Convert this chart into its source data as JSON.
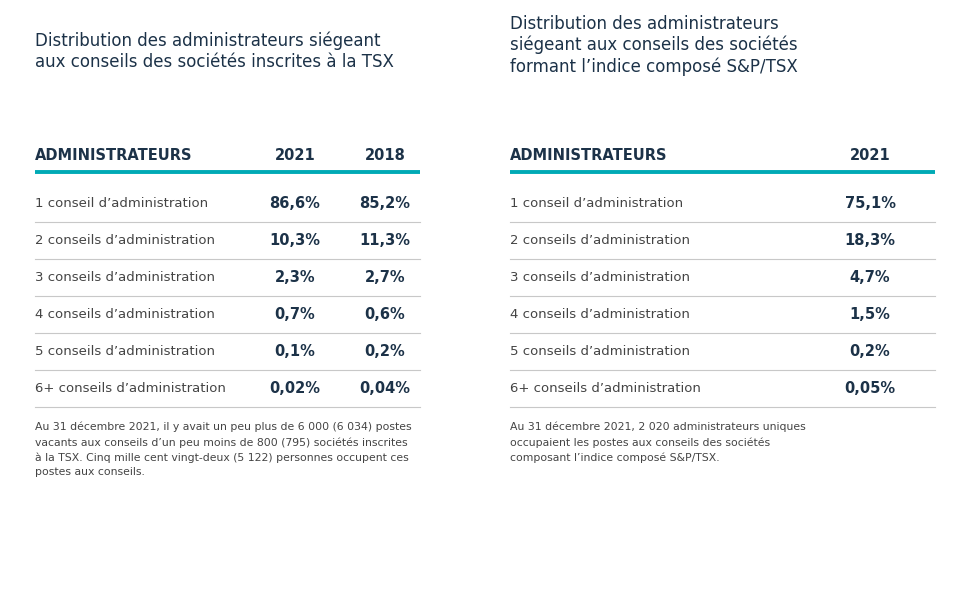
{
  "bg_color": "#ffffff",
  "text_color": "#1c3248",
  "teal_color": "#00aab5",
  "light_gray": "#c8c8c8",
  "dark_gray": "#444444",
  "left_title_line1": "Distribution des administrateurs siégeant",
  "left_title_line2": "aux conseils des sociétés inscrites à la TSX",
  "right_title_line1": "Distribution des administrateurs",
  "right_title_line2": "siégeant aux conseils des sociétés",
  "right_title_line3": "formant l’indice composé S&P/TSX",
  "col_header": "ADMINISTRATEURS",
  "left_col2_header": "2021",
  "left_col3_header": "2018",
  "right_col2_header": "2021",
  "rows": [
    "1 conseil d’administration",
    "2 conseils d’administration",
    "3 conseils d’administration",
    "4 conseils d’administration",
    "5 conseils d’administration",
    "6+ conseils d’administration"
  ],
  "left_2021": [
    "86,6%",
    "10,3%",
    "2,3%",
    "0,7%",
    "0,1%",
    "0,02%"
  ],
  "left_2018": [
    "85,2%",
    "11,3%",
    "2,7%",
    "0,6%",
    "0,2%",
    "0,04%"
  ],
  "right_2021": [
    "75,1%",
    "18,3%",
    "4,7%",
    "1,5%",
    "0,2%",
    "0,05%"
  ],
  "left_note": "Au 31 décembre 2021, il y avait un peu plus de 6 000 (6 034) postes\nvacants aux conseils d’un peu moins de 800 (795) sociétés inscrites\nà la TSX. Cinq mille cent vingt-deux (5 122) personnes occupent ces\npostes aux conseils.",
  "right_note": "Au 31 décembre 2021, 2 020 administrateurs uniques\noccupaient les postes aux conseils des sociétés\ncomposant l’indice composé S&P/TSX."
}
